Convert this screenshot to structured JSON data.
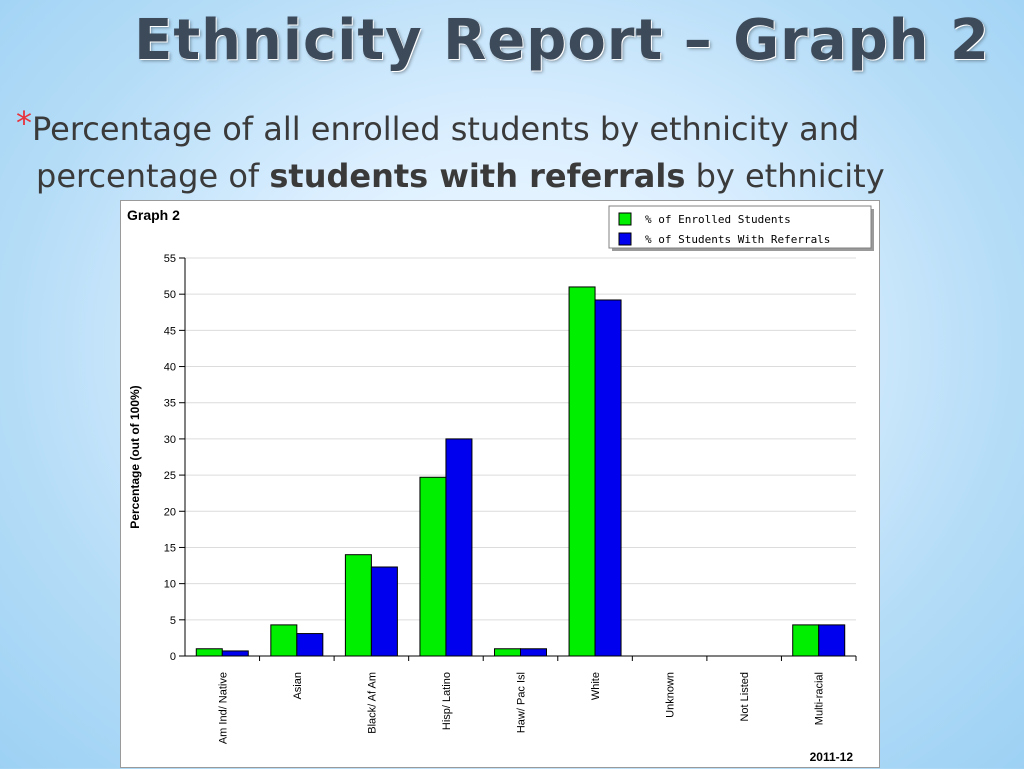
{
  "slide": {
    "title": "Ethnicity Report – Graph 2",
    "bullet": "*",
    "subtitle_part1": "Percentage of all enrolled students by ethnicity and percentage of ",
    "subtitle_bold": "students with referrals",
    "subtitle_part2": " by ethnicity",
    "accent_color": "#e8323c"
  },
  "chart_data": {
    "type": "bar",
    "title": "Graph 2",
    "ylabel": "Percentage (out of 100%)",
    "xlabel": "",
    "footnote": "2011-12",
    "categories": [
      "Am Ind/ Native",
      "Asian",
      "Black/ Af Am",
      "Hisp/ Latino",
      "Haw/ Pac Isl",
      "White",
      "Unknown",
      "Not Listed",
      "Multi-racial"
    ],
    "series": [
      {
        "name": "% of Enrolled Students",
        "color": "#00ee00",
        "values": [
          1.0,
          4.3,
          14.0,
          24.7,
          1.0,
          51.0,
          0,
          0,
          4.3
        ]
      },
      {
        "name": "% of Students With Referrals",
        "color": "#0000ee",
        "values": [
          0.7,
          3.1,
          12.3,
          30.0,
          1.0,
          49.2,
          0,
          0,
          4.3
        ]
      }
    ],
    "ylim": [
      0,
      55
    ],
    "yticks": [
      0,
      5,
      10,
      15,
      20,
      25,
      30,
      35,
      40,
      45,
      50,
      55
    ],
    "grid": true,
    "legend_position": "top-right"
  }
}
